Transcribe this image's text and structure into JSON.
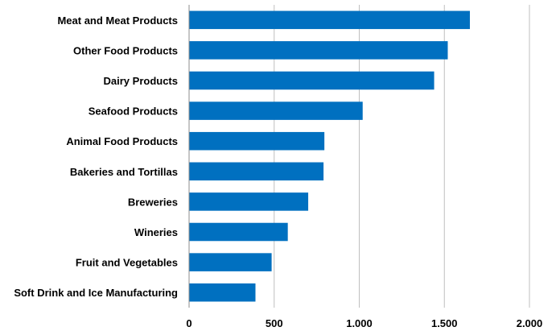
{
  "chart_data": {
    "type": "bar",
    "orientation": "horizontal",
    "title": "",
    "xlabel": "",
    "ylabel": "",
    "categories": [
      "Meat and Meat Products",
      "Other Food Products",
      "Dairy Products",
      "Seafood Products",
      "Animal Food Products",
      "Bakeries and Tortillas",
      "Breweries",
      "Wineries",
      "Fruit and Vegetables",
      "Soft Drink and Ice Manufacturing"
    ],
    "values": [
      1650,
      1520,
      1440,
      1020,
      795,
      790,
      700,
      580,
      485,
      390
    ],
    "xlim": [
      0,
      2000
    ],
    "xticks": [
      0,
      500,
      1000,
      1500,
      2000
    ],
    "xtick_labels": [
      "0",
      "500",
      "1,000",
      "1,500",
      "2,000"
    ],
    "bar_color": "#0070C0",
    "grid": "vertical",
    "legend": "none"
  }
}
